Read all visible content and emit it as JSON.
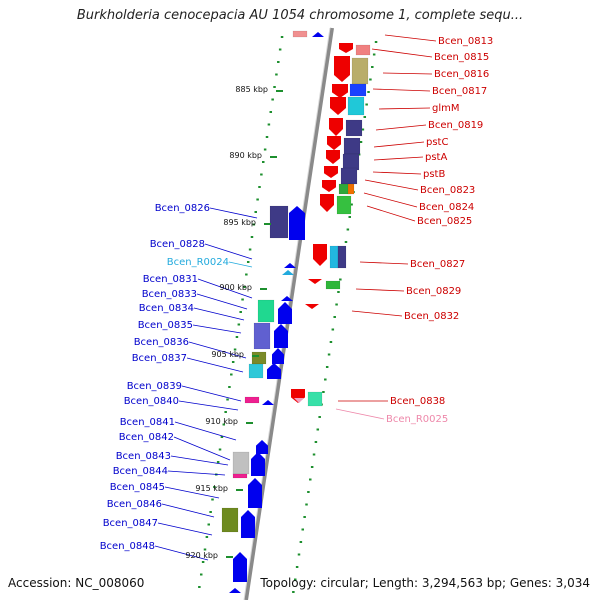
{
  "title": "Burkholderia cenocepacia AU 1054 chromosome 1, complete sequ...",
  "accession_text": "Accession: NC_008060",
  "summary_text": "Topology: circular; Length: 3,294,563 bp; Genes: 3,034",
  "colors": {
    "backbone": "#8a8a8a",
    "tick_dots": "#1d8f2e",
    "plus_strand_label": "#0000cc",
    "minus_strand_label": "#cc0000",
    "rrna_plus_label": "#22aadd",
    "rrna_minus_label": "#ee88aa"
  },
  "scale_ticks": [
    "885 kbp",
    "890 kbp",
    "895 kbp",
    "900 kbp",
    "905 kbp",
    "910 kbp",
    "915 kbp",
    "920 kbp"
  ],
  "left_labels": [
    "Bcen_0826",
    "Bcen_0828",
    "Bcen_R0024",
    "Bcen_0831",
    "Bcen_0833",
    "Bcen_0834",
    "Bcen_0835",
    "Bcen_0836",
    "Bcen_0837",
    "Bcen_0839",
    "Bcen_0840",
    "Bcen_0841",
    "Bcen_0842",
    "Bcen_0843",
    "Bcen_0844",
    "Bcen_0845",
    "Bcen_0846",
    "Bcen_0847",
    "Bcen_0848"
  ],
  "right_labels": [
    "Bcen_0813",
    "Bcen_0815",
    "Bcen_0816",
    "Bcen_0817",
    "glmM",
    "Bcen_0819",
    "pstC",
    "pstA",
    "pstB",
    "Bcen_0823",
    "Bcen_0824",
    "Bcen_0825",
    "Bcen_0827",
    "Bcen_0829",
    "Bcen_0832",
    "Bcen_0838",
    "Bcen_R0025"
  ]
}
